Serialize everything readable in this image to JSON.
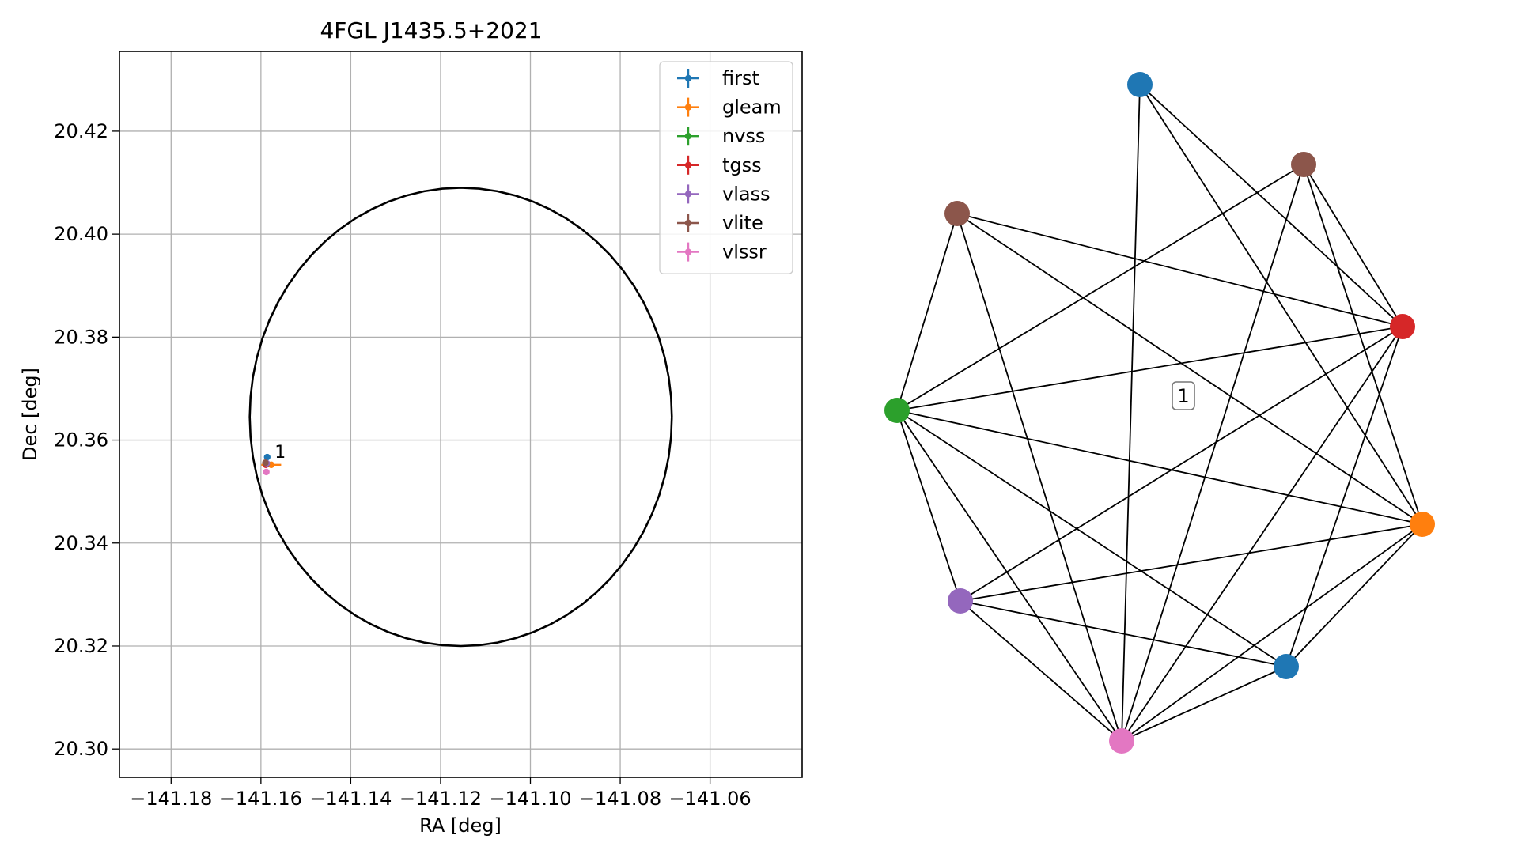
{
  "chart_data": [
    {
      "type": "scatter",
      "title": "4FGL J1435.5+2021",
      "xlabel": "RA [deg]",
      "ylabel": "Dec [deg]",
      "xlim": [
        -141.1915,
        -141.0395
      ],
      "ylim": [
        20.2945,
        20.4355
      ],
      "xticks": [
        -141.18,
        -141.16,
        -141.14,
        -141.12,
        -141.1,
        -141.08,
        -141.06
      ],
      "xtick_labels": [
        "−141.18",
        "−141.16",
        "−141.14",
        "−141.12",
        "−141.10",
        "−141.08",
        "−141.06"
      ],
      "yticks": [
        20.3,
        20.32,
        20.34,
        20.36,
        20.38,
        20.4,
        20.42
      ],
      "ytick_labels": [
        "20.30",
        "20.32",
        "20.34",
        "20.36",
        "20.38",
        "20.40",
        "20.42"
      ],
      "grid": true,
      "legend_position": "top-right",
      "ellipse": {
        "center": [
          -141.1155,
          20.3645
        ],
        "radius_x": 0.047,
        "radius_y": 0.0445,
        "color": "#000000"
      },
      "series": [
        {
          "name": "first",
          "color": "#1f77b4",
          "x": -141.1586,
          "y": 20.3567,
          "xerr": 0.0004,
          "yerr": 0.0003
        },
        {
          "name": "gleam",
          "color": "#ff7f0e",
          "x": -141.1577,
          "y": 20.3552,
          "xerr": 0.0022,
          "yerr": 0.0006
        },
        {
          "name": "nvss",
          "color": "#2ca02c",
          "x": -141.1588,
          "y": 20.3553,
          "xerr": 0.0004,
          "yerr": 0.0004
        },
        {
          "name": "tgss",
          "color": "#d62728",
          "x": -141.1589,
          "y": 20.3552,
          "xerr": 0.0003,
          "yerr": 0.0003
        },
        {
          "name": "vlass",
          "color": "#9467bd",
          "x": -141.1587,
          "y": 20.3555,
          "xerr": 0.0002,
          "yerr": 0.0002
        },
        {
          "name": "vlite",
          "color": "#8c564b",
          "x": -141.159,
          "y": 20.3556,
          "xerr": 0.0005,
          "yerr": 0.0005
        },
        {
          "name": "vlssr",
          "color": "#e377c2",
          "x": -141.1588,
          "y": 20.3538,
          "xerr": 0.0004,
          "yerr": 0.0005
        }
      ],
      "annotations": [
        {
          "text": "1",
          "x": -141.158,
          "y": 20.3575
        }
      ]
    },
    {
      "type": "network",
      "nodes": [
        {
          "color": "#1f77b4"
        },
        {
          "color": "#8c564b"
        },
        {
          "color": "#8c564b"
        },
        {
          "color": "#d62728"
        },
        {
          "color": "#2ca02c"
        },
        {
          "color": "#ff7f0e"
        },
        {
          "color": "#9467bd"
        },
        {
          "color": "#1f77b4"
        },
        {
          "color": "#e377c2"
        }
      ],
      "edges": [
        [
          0,
          3
        ],
        [
          0,
          5
        ],
        [
          0,
          8
        ],
        [
          1,
          4
        ],
        [
          1,
          3
        ],
        [
          1,
          5
        ],
        [
          1,
          8
        ],
        [
          2,
          4
        ],
        [
          2,
          3
        ],
        [
          2,
          5
        ],
        [
          2,
          8
        ],
        [
          3,
          4
        ],
        [
          3,
          6
        ],
        [
          3,
          7
        ],
        [
          3,
          8
        ],
        [
          4,
          5
        ],
        [
          4,
          6
        ],
        [
          4,
          7
        ],
        [
          4,
          8
        ],
        [
          5,
          6
        ],
        [
          5,
          7
        ],
        [
          5,
          8
        ],
        [
          6,
          7
        ],
        [
          6,
          8
        ],
        [
          7,
          8
        ]
      ],
      "label": "1"
    }
  ]
}
